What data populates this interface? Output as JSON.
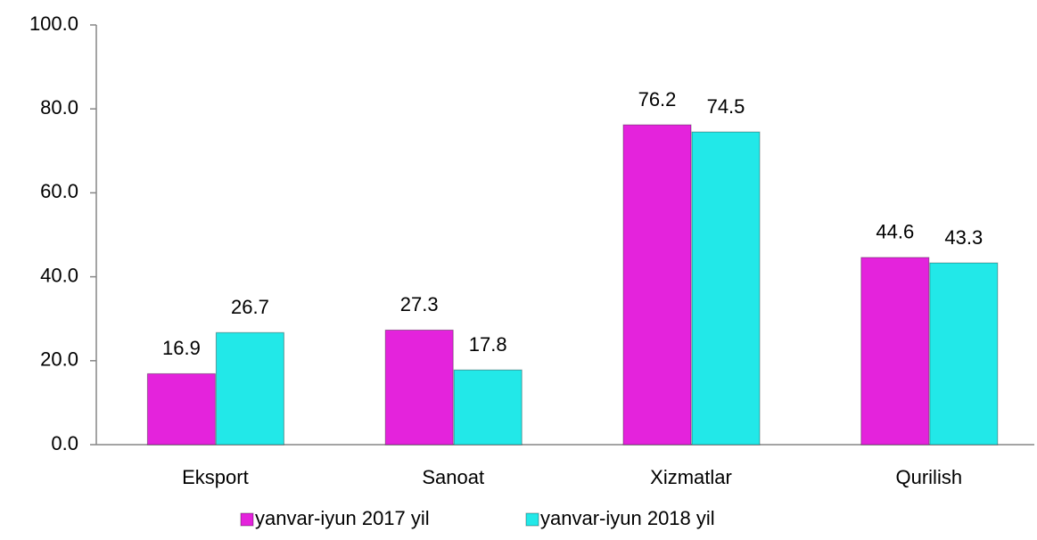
{
  "chart_data": {
    "type": "bar",
    "categories": [
      "Eksport",
      "Sanoat",
      "Xizmatlar",
      "Qurilish"
    ],
    "series": [
      {
        "name": "yanvar-iyun 2017 yil",
        "color": "#e423dc",
        "values": [
          16.9,
          27.3,
          76.2,
          44.6
        ]
      },
      {
        "name": "yanvar-iyun 2018 yil",
        "color": "#22e8e8",
        "values": [
          26.7,
          17.8,
          74.5,
          43.3
        ]
      }
    ],
    "ylim": [
      0,
      100
    ],
    "yticks": [
      {
        "value": 0,
        "label": "0.0"
      },
      {
        "value": 20,
        "label": "20.0"
      },
      {
        "value": 40,
        "label": "40.0"
      },
      {
        "value": 60,
        "label": "60.0"
      },
      {
        "value": 80,
        "label": "80.0"
      },
      {
        "value": 100,
        "label": "100.0"
      }
    ],
    "grid": false,
    "legend": "bottom"
  }
}
